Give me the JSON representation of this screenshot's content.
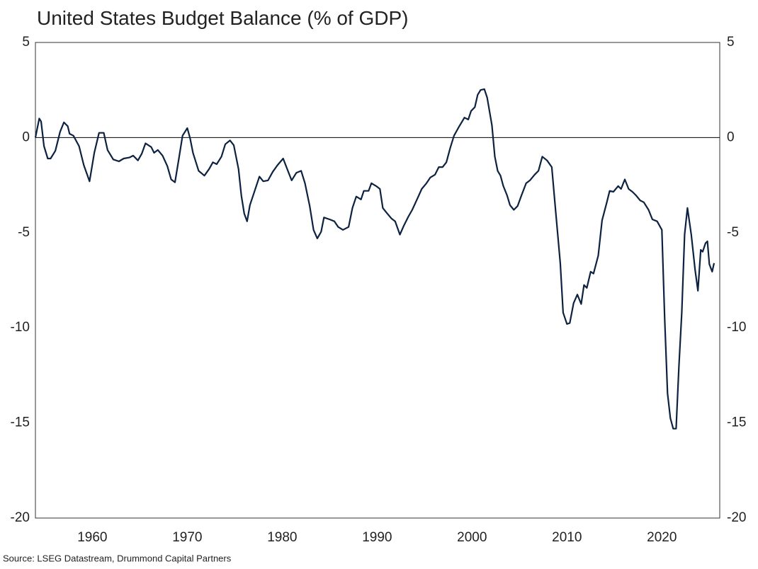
{
  "chart_data": {
    "type": "line",
    "title": "United States Budget Balance (% of GDP)",
    "source": "Source: LSEG Datastream, Drummond Capital Partners",
    "xlim": [
      1954,
      2026.1
    ],
    "xticks": [
      1960,
      1970,
      1980,
      1990,
      2000,
      2010,
      2020
    ],
    "ylim": [
      -20,
      5
    ],
    "yticks": [
      5,
      0,
      -5,
      -10,
      -15,
      -20
    ],
    "y2lim": [
      -20,
      5
    ],
    "y2ticks": [
      5,
      0,
      -5,
      -10,
      -15,
      -20
    ],
    "zero_line": true,
    "series": [
      {
        "color": "#0d2240",
        "x": [
          1954.0,
          1954.4,
          1954.6,
          1954.9,
          1955.3,
          1955.6,
          1956.1,
          1956.6,
          1957.0,
          1957.4,
          1957.6,
          1958.0,
          1958.6,
          1959.1,
          1959.7,
          1960.2,
          1960.7,
          1961.2,
          1961.6,
          1962.2,
          1962.8,
          1963.3,
          1963.9,
          1964.3,
          1964.8,
          1965.2,
          1965.6,
          1966.2,
          1966.5,
          1966.9,
          1967.4,
          1967.9,
          1968.3,
          1968.7,
          1969.1,
          1969.5,
          1970.0,
          1970.3,
          1970.6,
          1971.2,
          1971.8,
          1972.3,
          1972.7,
          1973.1,
          1973.6,
          1974.0,
          1974.5,
          1974.9,
          1975.4,
          1975.7,
          1976.0,
          1976.3,
          1976.6,
          1977.1,
          1977.6,
          1978.0,
          1978.5,
          1979.0,
          1979.5,
          1980.1,
          1980.6,
          1981.0,
          1981.5,
          1982.0,
          1982.4,
          1982.9,
          1983.3,
          1983.7,
          1984.1,
          1984.4,
          1985.0,
          1985.5,
          1985.9,
          1986.4,
          1987.0,
          1987.4,
          1987.8,
          1988.3,
          1988.6,
          1989.1,
          1989.4,
          1989.9,
          1990.3,
          1990.6,
          1991.0,
          1991.5,
          1991.9,
          1992.4,
          1992.8,
          1993.3,
          1993.7,
          1994.3,
          1994.7,
          1995.2,
          1995.6,
          1996.1,
          1996.5,
          1996.9,
          1997.3,
          1997.7,
          1998.1,
          1998.6,
          1998.9,
          1999.2,
          1999.6,
          1999.9,
          2000.3,
          2000.6,
          2000.9,
          2001.3,
          2001.6,
          2002.1,
          2002.4,
          2002.7,
          2003.0,
          2003.3,
          2003.7,
          2004.0,
          2004.4,
          2004.8,
          2005.2,
          2005.7,
          2006.1,
          2006.6,
          2007.0,
          2007.4,
          2007.9,
          2008.4,
          2008.8,
          2009.3,
          2009.6,
          2010.0,
          2010.3,
          2010.7,
          2011.1,
          2011.5,
          2011.8,
          2012.1,
          2012.5,
          2012.8,
          2013.3,
          2013.7,
          2014.2,
          2014.5,
          2014.9,
          2015.4,
          2015.7,
          2016.1,
          2016.5,
          2016.9,
          2017.3,
          2017.7,
          2018.1,
          2018.6,
          2019.0,
          2019.5,
          2020.0,
          2020.3,
          2020.6,
          2020.9,
          2021.2,
          2021.5,
          2021.8,
          2022.1,
          2022.4,
          2022.7,
          2023.1,
          2023.5,
          2023.8,
          2024.1,
          2024.3,
          2024.6,
          2024.8,
          2025.0,
          2025.3,
          2025.5
        ],
        "values": [
          0,
          1.0,
          0.85,
          -0.45,
          -1.1,
          -1.1,
          -0.7,
          0.3,
          0.8,
          0.6,
          0.2,
          0.1,
          -0.45,
          -1.45,
          -2.3,
          -0.8,
          0.25,
          0.25,
          -0.65,
          -1.15,
          -1.25,
          -1.1,
          -1.05,
          -0.95,
          -1.2,
          -0.85,
          -0.3,
          -0.5,
          -0.8,
          -0.65,
          -0.95,
          -1.5,
          -2.2,
          -2.35,
          -1.15,
          0.1,
          0.5,
          -0.05,
          -0.8,
          -1.75,
          -2.0,
          -1.65,
          -1.3,
          -1.4,
          -1.0,
          -0.35,
          -0.15,
          -0.4,
          -1.65,
          -3.05,
          -4.0,
          -4.4,
          -3.55,
          -2.8,
          -2.05,
          -2.3,
          -2.25,
          -1.8,
          -1.45,
          -1.1,
          -1.75,
          -2.25,
          -1.85,
          -1.75,
          -2.4,
          -3.6,
          -4.85,
          -5.3,
          -4.95,
          -4.2,
          -4.3,
          -4.4,
          -4.7,
          -4.85,
          -4.7,
          -3.7,
          -3.1,
          -3.25,
          -2.8,
          -2.8,
          -2.4,
          -2.55,
          -2.7,
          -3.7,
          -3.95,
          -4.25,
          -4.4,
          -5.1,
          -4.65,
          -4.15,
          -3.8,
          -3.15,
          -2.7,
          -2.4,
          -2.1,
          -1.95,
          -1.55,
          -1.55,
          -1.3,
          -0.55,
          0.1,
          0.55,
          0.8,
          1.05,
          0.95,
          1.4,
          1.6,
          2.25,
          2.5,
          2.55,
          2.1,
          0.65,
          -1.0,
          -1.75,
          -2.0,
          -2.55,
          -3.05,
          -3.55,
          -3.8,
          -3.6,
          -3.05,
          -2.4,
          -2.25,
          -1.95,
          -1.75,
          -1.0,
          -1.2,
          -1.55,
          -3.8,
          -6.6,
          -9.2,
          -9.8,
          -9.75,
          -8.7,
          -8.25,
          -8.75,
          -7.75,
          -7.9,
          -7.05,
          -7.15,
          -6.2,
          -4.35,
          -3.4,
          -2.8,
          -2.85,
          -2.55,
          -2.7,
          -2.2,
          -2.7,
          -2.85,
          -3.05,
          -3.3,
          -3.4,
          -3.8,
          -4.3,
          -4.4,
          -4.85,
          -9.55,
          -13.45,
          -14.75,
          -15.3,
          -15.3,
          -12.0,
          -9.2,
          -5.1,
          -3.7,
          -5.1,
          -6.95,
          -8.05,
          -5.9,
          -6.0,
          -5.55,
          -5.45,
          -6.65,
          -7.05,
          -6.6
        ]
      }
    ]
  }
}
